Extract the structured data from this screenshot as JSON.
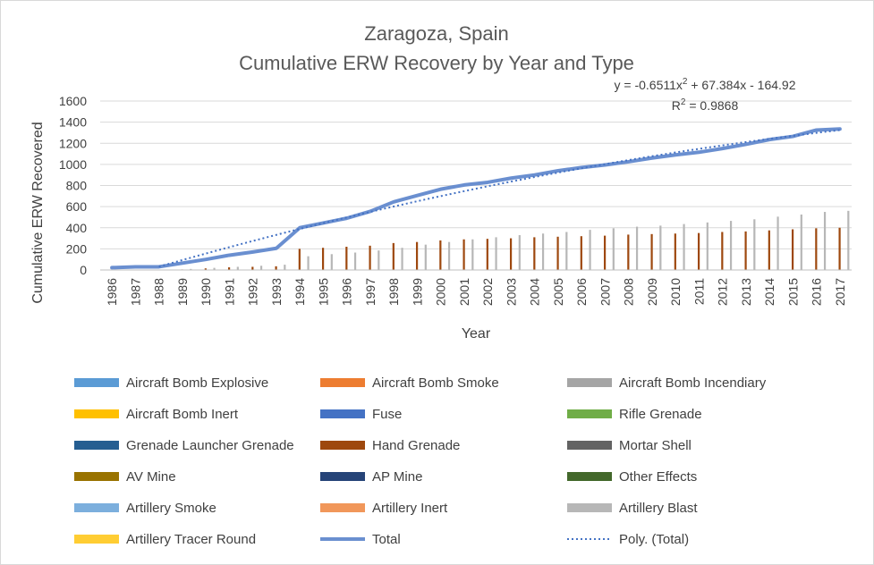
{
  "chart_data": {
    "type": "bar",
    "title": [
      "Zaragoza, Spain",
      "Cumulative ERW Recovery by Year and Type"
    ],
    "xlabel": "Year",
    "ylabel": "Cumulative ERW Recovered",
    "ylim": [
      0,
      1600
    ],
    "yticks": [
      0,
      200,
      400,
      600,
      800,
      1000,
      1200,
      1400,
      1600
    ],
    "grid": true,
    "legend_position": "bottom",
    "categories": [
      "1986",
      "1987",
      "1988",
      "1989",
      "1990",
      "1991",
      "1992",
      "1993",
      "1994",
      "1995",
      "1996",
      "1997",
      "1998",
      "1999",
      "2000",
      "2001",
      "2002",
      "2003",
      "2004",
      "2005",
      "2006",
      "2007",
      "2008",
      "2009",
      "2010",
      "2011",
      "2012",
      "2013",
      "2014",
      "2015",
      "2016",
      "2017"
    ],
    "trendline": {
      "name": "Poly. (Total)",
      "equation": "y = -0.6511x² + 67.384x - 164.92",
      "equation_parts": {
        "prefix": "y = -0.6511x",
        "exp": "2",
        "suffix": " + 67.384x - 164.92"
      },
      "r2": "R² = 0.9868",
      "r2_parts": {
        "prefix": "R",
        "exp": "2",
        "suffix": " = 0.9868"
      },
      "coefficients": [
        -0.6511,
        67.384,
        -164.92
      ],
      "color": "#4472c4"
    },
    "total_series": {
      "name": "Total",
      "color": "#6a8fd0",
      "values": [
        22,
        30,
        30,
        65,
        100,
        140,
        170,
        205,
        400,
        445,
        490,
        555,
        645,
        705,
        765,
        805,
        830,
        870,
        900,
        940,
        970,
        995,
        1025,
        1060,
        1090,
        1115,
        1150,
        1190,
        1235,
        1265,
        1325,
        1335
      ]
    },
    "series": [
      {
        "name": "Aircraft Bomb Explosive",
        "color": "#5b9bd5",
        "values": [
          0,
          0,
          0,
          0,
          0,
          0,
          0,
          0,
          0,
          0,
          0,
          0,
          0,
          0,
          0,
          0,
          0,
          0,
          0,
          0,
          0,
          0,
          0,
          0,
          0,
          0,
          0,
          0,
          0,
          0,
          0,
          0
        ]
      },
      {
        "name": "Aircraft Bomb Smoke",
        "color": "#ed7d31",
        "values": [
          0,
          0,
          0,
          0,
          0,
          0,
          0,
          0,
          0,
          0,
          0,
          0,
          0,
          0,
          0,
          0,
          0,
          0,
          0,
          0,
          0,
          0,
          0,
          0,
          0,
          0,
          0,
          0,
          0,
          0,
          0,
          0
        ]
      },
      {
        "name": "Aircraft Bomb Incendiary",
        "color": "#a5a5a5",
        "values": [
          0,
          0,
          0,
          0,
          0,
          0,
          0,
          0,
          0,
          0,
          0,
          0,
          0,
          0,
          0,
          0,
          0,
          0,
          0,
          0,
          0,
          0,
          0,
          0,
          0,
          0,
          0,
          0,
          0,
          0,
          0,
          0
        ]
      },
      {
        "name": "Aircraft Bomb Inert",
        "color": "#ffc000",
        "values": [
          0,
          0,
          0,
          0,
          0,
          0,
          0,
          0,
          0,
          0,
          0,
          0,
          0,
          0,
          0,
          0,
          0,
          0,
          0,
          0,
          0,
          0,
          0,
          0,
          0,
          0,
          0,
          0,
          0,
          0,
          0,
          0
        ]
      },
      {
        "name": "Fuse",
        "color": "#4472c4",
        "values": [
          0,
          0,
          0,
          0,
          0,
          0,
          0,
          0,
          0,
          0,
          0,
          0,
          0,
          0,
          0,
          0,
          0,
          0,
          0,
          0,
          0,
          0,
          0,
          0,
          0,
          0,
          0,
          0,
          0,
          0,
          0,
          0
        ]
      },
      {
        "name": "Rifle Grenade",
        "color": "#70ad47",
        "values": [
          0,
          0,
          0,
          0,
          0,
          0,
          0,
          0,
          0,
          0,
          0,
          0,
          0,
          0,
          0,
          0,
          0,
          0,
          0,
          0,
          0,
          0,
          0,
          0,
          0,
          0,
          0,
          0,
          0,
          0,
          0,
          0
        ]
      },
      {
        "name": "Grenade Launcher Grenade",
        "color": "#255e91",
        "values": [
          0,
          0,
          0,
          0,
          0,
          0,
          0,
          0,
          0,
          0,
          0,
          0,
          0,
          0,
          0,
          0,
          0,
          0,
          0,
          0,
          0,
          0,
          0,
          0,
          0,
          0,
          0,
          0,
          0,
          0,
          0,
          0
        ]
      },
      {
        "name": "Hand Grenade",
        "color": "#9e480e",
        "values": [
          0,
          0,
          0,
          5,
          15,
          25,
          30,
          35,
          200,
          210,
          220,
          230,
          255,
          265,
          280,
          290,
          295,
          300,
          310,
          315,
          320,
          325,
          335,
          340,
          345,
          350,
          360,
          365,
          375,
          385,
          395,
          400
        ]
      },
      {
        "name": "Mortar Shell",
        "color": "#636363",
        "values": [
          0,
          0,
          0,
          0,
          0,
          0,
          0,
          0,
          0,
          0,
          0,
          0,
          0,
          0,
          0,
          0,
          0,
          0,
          0,
          0,
          0,
          0,
          0,
          0,
          0,
          0,
          0,
          0,
          0,
          0,
          0,
          0
        ]
      },
      {
        "name": "AV Mine",
        "color": "#997300",
        "values": [
          0,
          0,
          0,
          0,
          0,
          0,
          0,
          0,
          0,
          0,
          0,
          0,
          0,
          0,
          0,
          0,
          0,
          0,
          0,
          0,
          0,
          0,
          0,
          0,
          0,
          0,
          0,
          0,
          0,
          0,
          0,
          0
        ]
      },
      {
        "name": "AP Mine",
        "color": "#264478",
        "values": [
          0,
          0,
          0,
          0,
          0,
          0,
          0,
          0,
          0,
          0,
          0,
          0,
          0,
          0,
          0,
          0,
          0,
          0,
          0,
          0,
          0,
          0,
          0,
          0,
          0,
          0,
          0,
          0,
          0,
          0,
          0,
          0
        ]
      },
      {
        "name": "Other Effects",
        "color": "#43682b",
        "values": [
          0,
          0,
          0,
          0,
          0,
          0,
          0,
          0,
          0,
          0,
          0,
          0,
          0,
          0,
          0,
          0,
          0,
          0,
          0,
          0,
          0,
          0,
          0,
          0,
          0,
          0,
          0,
          0,
          0,
          0,
          0,
          0
        ]
      },
      {
        "name": "Artillery Smoke",
        "color": "#7cafdd",
        "values": [
          0,
          0,
          0,
          0,
          0,
          0,
          0,
          0,
          0,
          0,
          0,
          0,
          0,
          0,
          0,
          0,
          0,
          0,
          0,
          0,
          0,
          0,
          0,
          0,
          0,
          0,
          0,
          0,
          0,
          0,
          0,
          0
        ]
      },
      {
        "name": "Artillery Inert",
        "color": "#f1975a",
        "values": [
          0,
          0,
          0,
          0,
          0,
          0,
          0,
          0,
          0,
          0,
          0,
          0,
          0,
          0,
          0,
          0,
          0,
          0,
          0,
          0,
          0,
          0,
          0,
          0,
          0,
          0,
          0,
          0,
          0,
          0,
          0,
          0
        ]
      },
      {
        "name": "Artillery Blast",
        "color": "#b7b7b7",
        "values": [
          0,
          0,
          0,
          10,
          20,
          30,
          40,
          50,
          130,
          150,
          165,
          185,
          210,
          240,
          265,
          290,
          310,
          330,
          345,
          360,
          380,
          395,
          410,
          420,
          435,
          450,
          465,
          480,
          505,
          525,
          550,
          560
        ]
      },
      {
        "name": "Artillery Tracer Round",
        "color": "#ffcd33",
        "values": [
          0,
          0,
          0,
          0,
          0,
          0,
          0,
          0,
          0,
          0,
          0,
          0,
          0,
          0,
          0,
          0,
          0,
          0,
          0,
          0,
          0,
          0,
          0,
          0,
          0,
          0,
          0,
          0,
          0,
          0,
          0,
          0
        ]
      }
    ]
  }
}
